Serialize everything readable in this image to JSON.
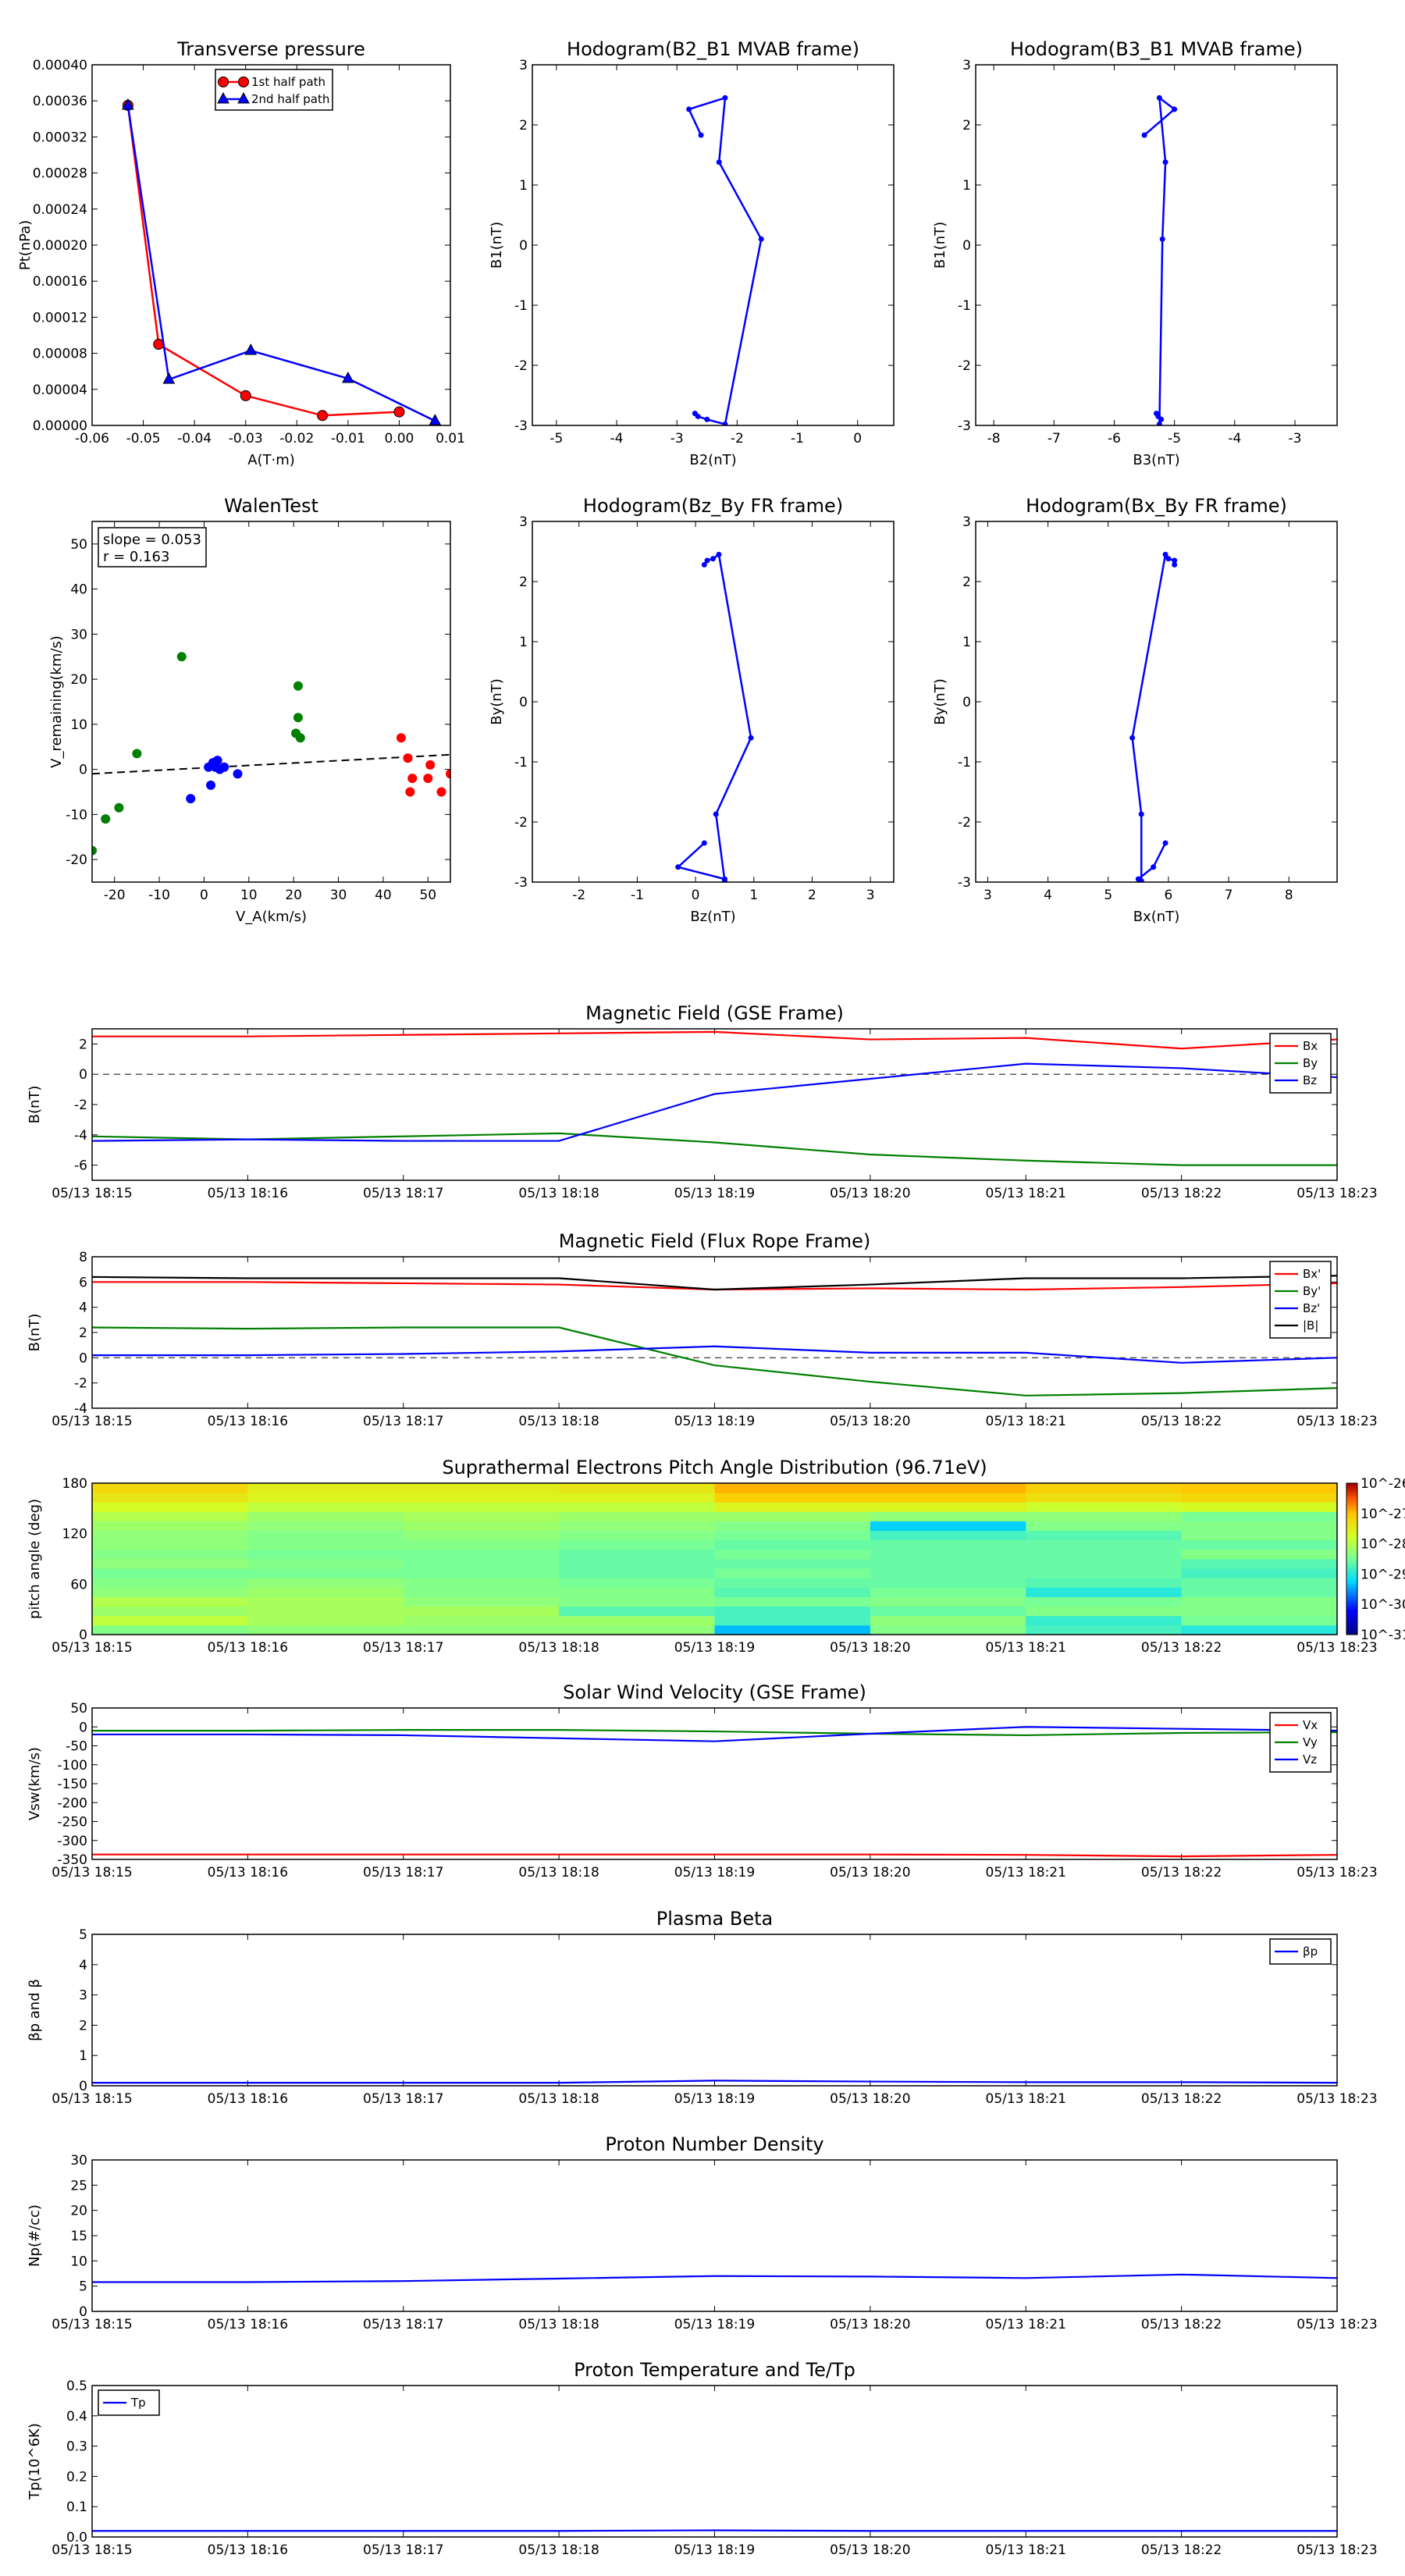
{
  "colors": {
    "red": "#ff0000",
    "green": "#008000",
    "blue": "#0000ff",
    "black": "#000000",
    "gray": "#555555"
  },
  "time_ticks": [
    "05/13 18:15",
    "05/13 18:16",
    "05/13 18:17",
    "05/13 18:18",
    "05/13 18:19",
    "05/13 18:20",
    "05/13 18:21",
    "05/13 18:22",
    "05/13 18:23"
  ],
  "chart_data": [
    {
      "id": "transverse_pressure",
      "type": "line",
      "title": "Transverse pressure",
      "xlabel": "A(T·m)",
      "ylabel": "Pt(nPa)",
      "xlim": [
        -0.06,
        0.01
      ],
      "ylim": [
        0,
        0.0004
      ],
      "xticks": [
        "-0.06",
        "-0.05",
        "-0.04",
        "-0.03",
        "-0.02",
        "-0.01",
        "0.00",
        "0.01"
      ],
      "yticks": [
        "0.00000",
        "0.00004",
        "0.00008",
        "0.00012",
        "0.00016",
        "0.00020",
        "0.00024",
        "0.00028",
        "0.00032",
        "0.00036",
        "0.00040"
      ],
      "legend_position": "top-center",
      "series": [
        {
          "name": "1st half path",
          "color": "#ff0000",
          "marker": "circle",
          "x": [
            -0.053,
            -0.047,
            -0.03,
            -0.015,
            0.0
          ],
          "y": [
            0.000355,
            9e-05,
            3.3e-05,
            1.1e-05,
            1.5e-05
          ]
        },
        {
          "name": "2nd half path",
          "color": "#0000ff",
          "marker": "triangle",
          "x": [
            -0.053,
            -0.045,
            -0.029,
            -0.01,
            0.007
          ],
          "y": [
            0.000355,
            5.1e-05,
            8.3e-05,
            5.2e-05,
            5e-06
          ]
        }
      ]
    },
    {
      "id": "hodo_b2_b1",
      "type": "line",
      "title": "Hodogram(B2_B1 MVAB frame)",
      "xlabel": "B2(nT)",
      "ylabel": "B1(nT)",
      "xlim": [
        -5.4,
        0.6
      ],
      "ylim": [
        -3,
        3
      ],
      "xticks": [
        "-5",
        "-4",
        "-3",
        "-2",
        "-1",
        "0"
      ],
      "yticks": [
        "-3",
        "-2",
        "-1",
        "0",
        "1",
        "2",
        "3"
      ],
      "series": [
        {
          "color": "#0000ff",
          "marker": "dot",
          "x": [
            -2.6,
            -2.8,
            -2.2,
            -2.3,
            -1.6,
            -2.2,
            -2.5,
            -2.65,
            -2.7
          ],
          "y": [
            1.83,
            2.26,
            2.45,
            1.38,
            0.1,
            -2.98,
            -2.9,
            -2.85,
            -2.8
          ]
        }
      ]
    },
    {
      "id": "hodo_b3_b1",
      "type": "line",
      "title": "Hodogram(B3_B1 MVAB frame)",
      "xlabel": "B3(nT)",
      "ylabel": "B1(nT)",
      "xlim": [
        -8.3,
        -2.3
      ],
      "ylim": [
        -3,
        3
      ],
      "xticks": [
        "-8",
        "-7",
        "-6",
        "-5",
        "-4",
        "-3"
      ],
      "yticks": [
        "-3",
        "-2",
        "-1",
        "0",
        "1",
        "2",
        "3"
      ],
      "series": [
        {
          "color": "#0000ff",
          "marker": "dot",
          "x": [
            -5.5,
            -5.0,
            -5.25,
            -5.15,
            -5.2,
            -5.25,
            -5.22,
            -5.27,
            -5.3
          ],
          "y": [
            1.83,
            2.26,
            2.45,
            1.38,
            0.1,
            -2.98,
            -2.9,
            -2.85,
            -2.8
          ]
        }
      ]
    },
    {
      "id": "walen_test",
      "type": "scatter",
      "title": "WalenTest",
      "xlabel": "V_A(km/s)",
      "ylabel": "V_remaining(km/s)",
      "xlim": [
        -25,
        55
      ],
      "ylim": [
        -25,
        55
      ],
      "xticks": [
        "-20",
        "-10",
        "0",
        "10",
        "20",
        "30",
        "40",
        "50"
      ],
      "yticks": [
        "-20",
        "-10",
        "0",
        "10",
        "20",
        "30",
        "40",
        "50"
      ],
      "annotation": {
        "slope": "slope = 0.053",
        "r": "r = 0.163"
      },
      "fit_line": {
        "slope": 0.053,
        "intercept": 0.35
      },
      "series": [
        {
          "color": "#008000",
          "x": [
            -5,
            -25,
            -22,
            -19,
            -15,
            21,
            21,
            20.5,
            21.5
          ],
          "y": [
            25,
            -18,
            -11,
            -8.5,
            3.5,
            18.5,
            11.5,
            8,
            7
          ]
        },
        {
          "color": "#0000ff",
          "x": [
            2,
            2.5,
            3,
            3.5,
            4.5,
            1.5,
            1,
            -3,
            7.5
          ],
          "y": [
            1.5,
            0.5,
            2,
            0,
            0.5,
            -3.5,
            0.5,
            -6.5,
            -1
          ]
        },
        {
          "color": "#ff0000",
          "x": [
            44,
            45.5,
            46.5,
            46,
            50,
            50.5,
            53,
            55,
            45.5
          ],
          "y": [
            7,
            2.5,
            -2,
            -5,
            -2,
            1,
            -5,
            -1,
            2.5
          ]
        }
      ]
    },
    {
      "id": "hodo_bz_by",
      "type": "line",
      "title": "Hodogram(Bz_By FR frame)",
      "xlabel": "Bz(nT)",
      "ylabel": "By(nT)",
      "xlim": [
        -2.8,
        3.4
      ],
      "ylim": [
        -3,
        3
      ],
      "xticks": [
        "-2",
        "-1",
        "0",
        "1",
        "2",
        "3"
      ],
      "yticks": [
        "-3",
        "-2",
        "-1",
        "0",
        "1",
        "2",
        "3"
      ],
      "series": [
        {
          "color": "#0000ff",
          "marker": "dot",
          "x": [
            0.15,
            0.2,
            0.3,
            0.4,
            0.95,
            0.35,
            0.5,
            0.5,
            -0.3,
            0.15
          ],
          "y": [
            2.28,
            2.35,
            2.38,
            2.45,
            -0.6,
            -1.87,
            -2.98,
            -2.95,
            -2.75,
            -2.35
          ]
        }
      ]
    },
    {
      "id": "hodo_bx_by",
      "type": "line",
      "title": "Hodogram(Bx_By FR frame)",
      "xlabel": "Bx(nT)",
      "ylabel": "By(nT)",
      "xlim": [
        2.8,
        8.8
      ],
      "ylim": [
        -3,
        3
      ],
      "xticks": [
        "3",
        "4",
        "5",
        "6",
        "7",
        "8"
      ],
      "yticks": [
        "-3",
        "-2",
        "-1",
        "0",
        "1",
        "2",
        "3"
      ],
      "series": [
        {
          "color": "#0000ff",
          "marker": "dot",
          "x": [
            6.1,
            6.1,
            6.0,
            5.95,
            5.4,
            5.55,
            5.55,
            5.5,
            5.75,
            5.95
          ],
          "y": [
            2.28,
            2.35,
            2.38,
            2.45,
            -0.6,
            -1.87,
            -2.98,
            -2.95,
            -2.75,
            -2.35
          ]
        }
      ]
    },
    {
      "id": "mag_gse",
      "type": "line",
      "title": "Magnetic Field (GSE Frame)",
      "ylabel": "B(nT)",
      "ylim": [
        -7,
        3
      ],
      "yticks": [
        "-6",
        "-4",
        "-2",
        "0",
        "2"
      ],
      "ytick_values": [
        -6,
        -4,
        -2,
        0,
        2
      ],
      "x": [
        0,
        1,
        2,
        3,
        4,
        5,
        6,
        7,
        8
      ],
      "legend_position": "top-right",
      "zero_line": true,
      "series": [
        {
          "name": "Bx",
          "color": "#ff0000",
          "values": [
            2.5,
            2.5,
            2.6,
            2.7,
            2.8,
            2.3,
            2.4,
            1.7,
            2.3
          ]
        },
        {
          "name": "By",
          "color": "#008000",
          "values": [
            -4.1,
            -4.3,
            -4.1,
            -3.9,
            -4.5,
            -5.3,
            -5.7,
            -6.0,
            -6.0
          ]
        },
        {
          "name": "Bz",
          "color": "#0000ff",
          "values": [
            -4.4,
            -4.3,
            -4.4,
            -4.4,
            -1.3,
            -0.3,
            0.7,
            0.4,
            -0.2
          ]
        }
      ]
    },
    {
      "id": "mag_fr",
      "type": "line",
      "title": "Magnetic Field (Flux Rope Frame)",
      "ylabel": "B(nT)",
      "ylim": [
        -4,
        8
      ],
      "yticks": [
        "-4",
        "-2",
        "0",
        "2",
        "4",
        "6",
        "8"
      ],
      "ytick_values": [
        -4,
        -2,
        0,
        2,
        4,
        6,
        8
      ],
      "x": [
        0,
        1,
        2,
        3,
        4,
        5,
        6,
        7,
        8
      ],
      "legend_position": "top-right",
      "zero_line": true,
      "series": [
        {
          "name": "Bx'",
          "color": "#ff0000",
          "values": [
            6.0,
            6.0,
            5.9,
            5.8,
            5.4,
            5.5,
            5.4,
            5.6,
            5.9
          ]
        },
        {
          "name": "By'",
          "color": "#008000",
          "values": [
            2.4,
            2.3,
            2.4,
            2.4,
            -0.6,
            -1.9,
            -3.0,
            -2.8,
            -2.4
          ]
        },
        {
          "name": "Bz'",
          "color": "#0000ff",
          "values": [
            0.2,
            0.2,
            0.3,
            0.5,
            0.9,
            0.4,
            0.4,
            -0.4,
            0.0
          ]
        },
        {
          "name": "|B|",
          "color": "#000000",
          "values": [
            6.4,
            6.3,
            6.3,
            6.3,
            5.4,
            5.8,
            6.3,
            6.3,
            6.5
          ]
        }
      ]
    },
    {
      "id": "pad",
      "type": "heatmap",
      "title": "Suprathermal Electrons Pitch Angle Distribution (96.71eV)",
      "ylabel": "pitch angle (deg)",
      "ylim": [
        0,
        180
      ],
      "yticks": [
        "0",
        "60",
        "120",
        "180"
      ],
      "ytick_values": [
        0,
        60,
        120,
        180
      ],
      "colorbar_ticks": [
        "10^-26",
        "10^-27",
        "10^-28",
        "10^-29",
        "10^-30",
        "10^-31"
      ],
      "columns": 8,
      "bins_deg": [
        0,
        11.25,
        22.5,
        33.75,
        45,
        56.25,
        67.5,
        78.75,
        90,
        101.25,
        112.5,
        123.75,
        135,
        146.25,
        157.5,
        168.75,
        180
      ],
      "log_values": [
        [
          -28.4,
          -28.3,
          -28.3,
          -28.3,
          -29.4,
          -28.4,
          -28.8,
          -29.0
        ],
        [
          -27.9,
          -28.1,
          -28.2,
          -28.2,
          -28.8,
          -28.3,
          -28.9,
          -28.5
        ],
        [
          -28.2,
          -28.1,
          -28.1,
          -28.7,
          -28.8,
          -28.6,
          -28.4,
          -28.4
        ],
        [
          -28.0,
          -28.1,
          -28.3,
          -28.4,
          -28.5,
          -28.4,
          -28.5,
          -28.4
        ],
        [
          -28.3,
          -28.2,
          -28.4,
          -28.4,
          -28.7,
          -28.5,
          -29.0,
          -28.6
        ],
        [
          -28.4,
          -28.3,
          -28.4,
          -28.5,
          -28.6,
          -28.6,
          -28.7,
          -28.6
        ],
        [
          -28.5,
          -28.5,
          -28.5,
          -28.6,
          -28.5,
          -28.6,
          -28.6,
          -28.8
        ],
        [
          -28.3,
          -28.4,
          -28.5,
          -28.6,
          -28.6,
          -28.6,
          -28.6,
          -28.7
        ],
        [
          -28.4,
          -28.5,
          -28.5,
          -28.6,
          -28.5,
          -28.6,
          -28.6,
          -28.4
        ],
        [
          -28.3,
          -28.4,
          -28.4,
          -28.5,
          -28.6,
          -28.6,
          -28.6,
          -28.6
        ],
        [
          -28.3,
          -28.4,
          -28.3,
          -28.4,
          -28.5,
          -28.8,
          -28.7,
          -28.4
        ],
        [
          -28.2,
          -28.3,
          -28.2,
          -28.3,
          -28.4,
          -29.3,
          -28.4,
          -28.4
        ],
        [
          -28.0,
          -28.2,
          -28.1,
          -28.2,
          -28.2,
          -28.3,
          -28.3,
          -28.5
        ],
        [
          -27.7,
          -27.9,
          -27.9,
          -27.9,
          -27.6,
          -27.6,
          -27.8,
          -27.7
        ],
        [
          -27.4,
          -27.6,
          -27.6,
          -27.6,
          -27.1,
          -27.1,
          -27.3,
          -27.2
        ],
        [
          -27.2,
          -27.5,
          -27.5,
          -27.4,
          -26.9,
          -26.9,
          -27.1,
          -27.0
        ]
      ]
    },
    {
      "id": "vsw",
      "type": "line",
      "title": "Solar Wind Velocity (GSE Frame)",
      "ylabel": "Vsw(km/s)",
      "ylim": [
        -350,
        50
      ],
      "yticks": [
        "-350",
        "-300",
        "-250",
        "-200",
        "-150",
        "-100",
        "-50",
        "0",
        "50"
      ],
      "ytick_values": [
        -350,
        -300,
        -250,
        -200,
        -150,
        -100,
        -50,
        0,
        50
      ],
      "x": [
        0,
        1,
        2,
        3,
        4,
        5,
        6,
        7,
        8
      ],
      "legend_position": "top-right",
      "series": [
        {
          "name": "Vx",
          "color": "#ff0000",
          "values": [
            -337,
            -337,
            -337,
            -337,
            -337,
            -337,
            -338,
            -342,
            -338
          ]
        },
        {
          "name": "Vy",
          "color": "#008000",
          "values": [
            -10,
            -10,
            -8,
            -8,
            -12,
            -18,
            -22,
            -16,
            -14
          ]
        },
        {
          "name": "Vz",
          "color": "#0000ff",
          "values": [
            -20,
            -20,
            -22,
            -30,
            -38,
            -18,
            0,
            -5,
            -10
          ]
        }
      ]
    },
    {
      "id": "beta",
      "type": "line",
      "title": "Plasma Beta",
      "ylabel": "βp and β",
      "ylim": [
        0,
        5
      ],
      "yticks": [
        "0",
        "1",
        "2",
        "3",
        "4",
        "5"
      ],
      "ytick_values": [
        0,
        1,
        2,
        3,
        4,
        5
      ],
      "x": [
        0,
        1,
        2,
        3,
        4,
        5,
        6,
        7,
        8
      ],
      "legend_position": "top-right",
      "series": [
        {
          "name": "βp",
          "color": "#0000ff",
          "values": [
            0.1,
            0.1,
            0.1,
            0.1,
            0.17,
            0.14,
            0.12,
            0.12,
            0.1
          ]
        }
      ]
    },
    {
      "id": "density",
      "type": "line",
      "title": "Proton Number Density",
      "ylabel": "Np(#/cc)",
      "ylim": [
        0,
        30
      ],
      "yticks": [
        "0",
        "5",
        "10",
        "15",
        "20",
        "25",
        "30"
      ],
      "ytick_values": [
        0,
        5,
        10,
        15,
        20,
        25,
        30
      ],
      "x": [
        0,
        1,
        2,
        3,
        4,
        5,
        6,
        7,
        8
      ],
      "series": [
        {
          "color": "#0000ff",
          "values": [
            5.8,
            5.8,
            6.0,
            6.5,
            7.0,
            6.9,
            6.6,
            7.3,
            6.6
          ]
        }
      ]
    },
    {
      "id": "temperature",
      "type": "line",
      "title": "Proton Temperature and Te/Tp",
      "ylabel": "Tp(10^6K)",
      "ylim": [
        0,
        0.5
      ],
      "yticks": [
        "0.0",
        "0.1",
        "0.2",
        "0.3",
        "0.4",
        "0.5"
      ],
      "ytick_values": [
        0,
        0.1,
        0.2,
        0.3,
        0.4,
        0.5
      ],
      "x": [
        0,
        1,
        2,
        3,
        4,
        5,
        6,
        7,
        8
      ],
      "legend_position": "top-left",
      "series": [
        {
          "name": "Tp",
          "color": "#0000ff",
          "values": [
            0.02,
            0.02,
            0.02,
            0.02,
            0.022,
            0.02,
            0.02,
            0.02,
            0.02
          ]
        }
      ]
    }
  ]
}
